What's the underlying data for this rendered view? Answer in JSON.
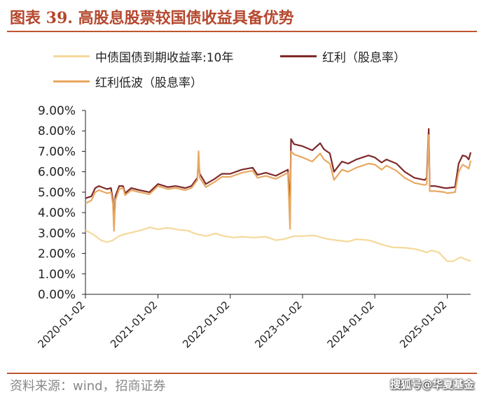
{
  "page": {
    "title": "图表 39. 高股息股票较国债收益具备优势",
    "source": "资料来源：wind，招商证券",
    "watermark": "搜狐号@华夏基金"
  },
  "chart_data": {
    "type": "line",
    "title": "",
    "xlabel": "",
    "ylabel": "",
    "ylim": [
      0,
      0.09
    ],
    "y_ticks": [
      "0.00%",
      "1.00%",
      "2.00%",
      "3.00%",
      "4.00%",
      "5.00%",
      "6.00%",
      "7.00%",
      "8.00%",
      "9.00%"
    ],
    "x_ticks": [
      "2020-01-02",
      "2021-01-02",
      "2022-01-02",
      "2023-01-02",
      "2024-01-02",
      "2025-01-02"
    ],
    "x_range": [
      "2020-01-02",
      "2025-04-30"
    ],
    "legend_position": "top",
    "grid": false,
    "series": [
      {
        "name": "中债国债到期收益率:10年",
        "color": "#f5d99a",
        "points": [
          [
            "2020-01-02",
            3.15
          ],
          [
            "2020-02-15",
            2.9
          ],
          [
            "2020-03-20",
            2.65
          ],
          [
            "2020-04-20",
            2.55
          ],
          [
            "2020-05-20",
            2.65
          ],
          [
            "2020-06-20",
            2.85
          ],
          [
            "2020-07-20",
            2.95
          ],
          [
            "2020-09-01",
            3.05
          ],
          [
            "2020-10-15",
            3.15
          ],
          [
            "2020-11-20",
            3.28
          ],
          [
            "2021-01-02",
            3.18
          ],
          [
            "2021-02-15",
            3.25
          ],
          [
            "2021-03-20",
            3.22
          ],
          [
            "2021-04-20",
            3.15
          ],
          [
            "2021-06-01",
            3.12
          ],
          [
            "2021-07-15",
            2.95
          ],
          [
            "2021-09-01",
            2.85
          ],
          [
            "2021-10-20",
            2.98
          ],
          [
            "2021-12-01",
            2.85
          ],
          [
            "2022-01-20",
            2.78
          ],
          [
            "2022-03-01",
            2.82
          ],
          [
            "2022-05-01",
            2.78
          ],
          [
            "2022-07-01",
            2.82
          ],
          [
            "2022-08-20",
            2.65
          ],
          [
            "2022-10-01",
            2.7
          ],
          [
            "2022-11-20",
            2.85
          ],
          [
            "2023-01-02",
            2.85
          ],
          [
            "2023-03-01",
            2.88
          ],
          [
            "2023-05-01",
            2.72
          ],
          [
            "2023-06-20",
            2.65
          ],
          [
            "2023-08-20",
            2.58
          ],
          [
            "2023-10-01",
            2.7
          ],
          [
            "2023-12-01",
            2.65
          ],
          [
            "2024-01-02",
            2.56
          ],
          [
            "2024-02-20",
            2.4
          ],
          [
            "2024-04-01",
            2.3
          ],
          [
            "2024-06-01",
            2.28
          ],
          [
            "2024-07-20",
            2.22
          ],
          [
            "2024-08-20",
            2.15
          ],
          [
            "2024-09-20",
            2.05
          ],
          [
            "2024-10-15",
            2.15
          ],
          [
            "2024-11-20",
            2.05
          ],
          [
            "2024-12-20",
            1.75
          ],
          [
            "2025-01-02",
            1.62
          ],
          [
            "2025-02-01",
            1.62
          ],
          [
            "2025-03-10",
            1.82
          ],
          [
            "2025-04-01",
            1.72
          ],
          [
            "2025-04-30",
            1.63
          ]
        ]
      },
      {
        "name": "红利（股息率）",
        "color": "#7f2a2a",
        "points": [
          [
            "2020-01-02",
            4.7
          ],
          [
            "2020-02-01",
            4.8
          ],
          [
            "2020-02-20",
            5.2
          ],
          [
            "2020-03-10",
            5.3
          ],
          [
            "2020-04-20",
            5.15
          ],
          [
            "2020-05-10",
            5.2
          ],
          [
            "2020-05-20",
            4.6
          ],
          [
            "2020-05-25",
            3.4
          ],
          [
            "2020-06-01",
            4.8
          ],
          [
            "2020-06-20",
            5.3
          ],
          [
            "2020-07-10",
            5.3
          ],
          [
            "2020-07-20",
            4.95
          ],
          [
            "2020-08-20",
            5.2
          ],
          [
            "2020-10-01",
            5.1
          ],
          [
            "2020-11-20",
            5.0
          ],
          [
            "2021-01-02",
            5.4
          ],
          [
            "2021-02-20",
            5.25
          ],
          [
            "2021-04-01",
            5.3
          ],
          [
            "2021-05-20",
            5.2
          ],
          [
            "2021-06-20",
            5.3
          ],
          [
            "2021-07-20",
            5.7
          ],
          [
            "2021-07-26",
            6.6
          ],
          [
            "2021-08-01",
            5.9
          ],
          [
            "2021-09-01",
            5.4
          ],
          [
            "2021-10-15",
            5.65
          ],
          [
            "2021-11-20",
            5.9
          ],
          [
            "2022-01-02",
            5.9
          ],
          [
            "2022-03-01",
            6.1
          ],
          [
            "2022-04-25",
            6.2
          ],
          [
            "2022-05-20",
            5.85
          ],
          [
            "2022-07-01",
            5.95
          ],
          [
            "2022-08-20",
            5.8
          ],
          [
            "2022-10-20",
            6.1
          ],
          [
            "2022-10-31",
            4.2
          ],
          [
            "2022-11-05",
            7.6
          ],
          [
            "2022-11-20",
            7.35
          ],
          [
            "2023-01-02",
            7.25
          ],
          [
            "2023-02-20",
            7.05
          ],
          [
            "2023-04-01",
            7.4
          ],
          [
            "2023-04-20",
            7.1
          ],
          [
            "2023-05-20",
            6.9
          ],
          [
            "2023-06-10",
            6.0
          ],
          [
            "2023-07-20",
            6.5
          ],
          [
            "2023-08-20",
            6.4
          ],
          [
            "2023-10-01",
            6.6
          ],
          [
            "2023-12-01",
            6.8
          ],
          [
            "2024-01-02",
            6.7
          ],
          [
            "2024-02-05",
            6.45
          ],
          [
            "2024-03-01",
            6.6
          ],
          [
            "2024-04-20",
            6.4
          ],
          [
            "2024-06-01",
            6.0
          ],
          [
            "2024-07-20",
            5.7
          ],
          [
            "2024-09-10",
            5.6
          ],
          [
            "2024-09-20",
            5.7
          ],
          [
            "2024-09-30",
            8.1
          ],
          [
            "2024-10-05",
            5.3
          ],
          [
            "2024-11-01",
            5.3
          ],
          [
            "2024-12-20",
            5.2
          ],
          [
            "2025-01-02",
            5.2
          ],
          [
            "2025-02-10",
            5.25
          ],
          [
            "2025-02-28",
            6.4
          ],
          [
            "2025-03-20",
            6.8
          ],
          [
            "2025-04-07",
            6.75
          ],
          [
            "2025-04-20",
            6.6
          ],
          [
            "2025-04-30",
            6.95
          ]
        ]
      },
      {
        "name": "红利低波（股息率）",
        "color": "#e8a860",
        "points": [
          [
            "2020-01-02",
            4.45
          ],
          [
            "2020-02-01",
            4.6
          ],
          [
            "2020-02-20",
            5.0
          ],
          [
            "2020-03-10",
            5.1
          ],
          [
            "2020-04-20",
            4.95
          ],
          [
            "2020-05-10",
            5.0
          ],
          [
            "2020-05-20",
            4.4
          ],
          [
            "2020-05-25",
            3.1
          ],
          [
            "2020-06-01",
            4.6
          ],
          [
            "2020-06-20",
            5.15
          ],
          [
            "2020-07-10",
            5.2
          ],
          [
            "2020-07-20",
            4.85
          ],
          [
            "2020-08-20",
            5.1
          ],
          [
            "2020-10-01",
            5.0
          ],
          [
            "2020-11-20",
            4.9
          ],
          [
            "2021-01-02",
            5.3
          ],
          [
            "2021-02-20",
            5.15
          ],
          [
            "2021-04-01",
            5.2
          ],
          [
            "2021-05-20",
            5.1
          ],
          [
            "2021-06-20",
            5.2
          ],
          [
            "2021-07-20",
            5.6
          ],
          [
            "2021-07-26",
            7.0
          ],
          [
            "2021-08-01",
            5.7
          ],
          [
            "2021-09-01",
            5.25
          ],
          [
            "2021-10-15",
            5.5
          ],
          [
            "2021-11-20",
            5.75
          ],
          [
            "2022-01-02",
            5.75
          ],
          [
            "2022-03-01",
            5.95
          ],
          [
            "2022-04-25",
            6.05
          ],
          [
            "2022-05-20",
            5.7
          ],
          [
            "2022-07-01",
            5.8
          ],
          [
            "2022-08-20",
            5.65
          ],
          [
            "2022-10-20",
            5.95
          ],
          [
            "2022-10-31",
            3.2
          ],
          [
            "2022-11-05",
            7.0
          ],
          [
            "2022-11-20",
            6.85
          ],
          [
            "2023-01-02",
            6.7
          ],
          [
            "2023-02-20",
            6.5
          ],
          [
            "2023-04-01",
            6.9
          ],
          [
            "2023-04-20",
            6.6
          ],
          [
            "2023-05-20",
            6.4
          ],
          [
            "2023-06-10",
            5.6
          ],
          [
            "2023-07-20",
            6.1
          ],
          [
            "2023-08-20",
            6.0
          ],
          [
            "2023-10-01",
            6.2
          ],
          [
            "2023-12-01",
            6.4
          ],
          [
            "2024-01-02",
            6.35
          ],
          [
            "2024-02-05",
            6.1
          ],
          [
            "2024-03-01",
            6.3
          ],
          [
            "2024-04-20",
            6.05
          ],
          [
            "2024-06-01",
            5.7
          ],
          [
            "2024-07-20",
            5.45
          ],
          [
            "2024-09-10",
            5.35
          ],
          [
            "2024-09-20",
            5.4
          ],
          [
            "2024-09-30",
            7.8
          ],
          [
            "2024-10-05",
            5.05
          ],
          [
            "2024-11-01",
            5.05
          ],
          [
            "2024-12-20",
            5.0
          ],
          [
            "2025-01-02",
            4.95
          ],
          [
            "2025-02-10",
            5.0
          ],
          [
            "2025-02-28",
            6.0
          ],
          [
            "2025-03-20",
            6.35
          ],
          [
            "2025-04-07",
            6.25
          ],
          [
            "2025-04-20",
            6.15
          ],
          [
            "2025-04-30",
            6.55
          ]
        ]
      }
    ]
  }
}
